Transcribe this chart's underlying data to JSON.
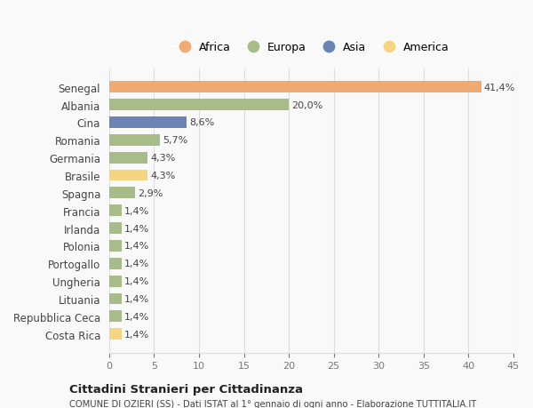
{
  "countries": [
    "Senegal",
    "Albania",
    "Cina",
    "Romania",
    "Germania",
    "Brasile",
    "Spagna",
    "Francia",
    "Irlanda",
    "Polonia",
    "Portogallo",
    "Ungheria",
    "Lituania",
    "Repubblica Ceca",
    "Costa Rica"
  ],
  "values": [
    41.4,
    20.0,
    8.6,
    5.7,
    4.3,
    4.3,
    2.9,
    1.4,
    1.4,
    1.4,
    1.4,
    1.4,
    1.4,
    1.4,
    1.4
  ],
  "labels": [
    "41,4%",
    "20,0%",
    "8,6%",
    "5,7%",
    "4,3%",
    "4,3%",
    "2,9%",
    "1,4%",
    "1,4%",
    "1,4%",
    "1,4%",
    "1,4%",
    "1,4%",
    "1,4%",
    "1,4%"
  ],
  "colors": [
    "#f0aa72",
    "#a8bc8a",
    "#6b83b5",
    "#a8bc8a",
    "#a8bc8a",
    "#f5d482",
    "#a8bc8a",
    "#a8bc8a",
    "#a8bc8a",
    "#a8bc8a",
    "#a8bc8a",
    "#a8bc8a",
    "#a8bc8a",
    "#a8bc8a",
    "#f5d482"
  ],
  "legend_labels": [
    "Africa",
    "Europa",
    "Asia",
    "America"
  ],
  "legend_colors": [
    "#f0aa72",
    "#a8bc8a",
    "#6b83b5",
    "#f5d482"
  ],
  "xlim": [
    0,
    45
  ],
  "xticks": [
    0,
    5,
    10,
    15,
    20,
    25,
    30,
    35,
    40,
    45
  ],
  "title1": "Cittadini Stranieri per Cittadinanza",
  "title2": "COMUNE DI OZIERI (SS) - Dati ISTAT al 1° gennaio di ogni anno - Elaborazione TUTTITALIA.IT",
  "background_color": "#f9f9f9",
  "bar_height": 0.65,
  "grid_color": "#dddddd"
}
